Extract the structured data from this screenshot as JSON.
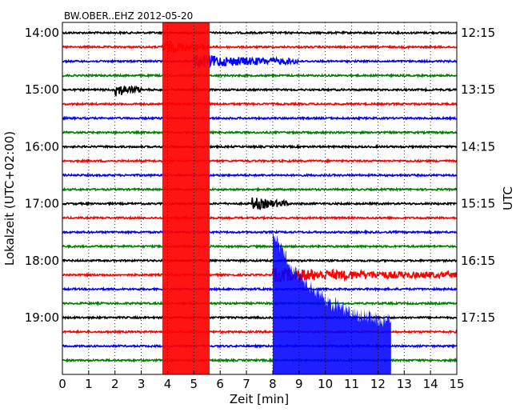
{
  "chart_data": {
    "type": "line",
    "title": "BW.OBER..EHZ 2012-05-20",
    "xlabel": "Zeit  [min]",
    "ylabel": "Lokalzeit (UTC+02:00)",
    "ylabel_right": "UTC",
    "xlim": [
      0,
      15
    ],
    "x_ticks": [
      "0",
      "1",
      "2",
      "3",
      "4",
      "5",
      "6",
      "7",
      "8",
      "9",
      "10",
      "11",
      "12",
      "13",
      "14",
      "15"
    ],
    "left_ticks": [
      "14:00",
      "15:00",
      "16:00",
      "17:00",
      "18:00",
      "19:00"
    ],
    "right_ticks": [
      "12:15",
      "13:15",
      "14:15",
      "15:15",
      "16:15",
      "17:15"
    ],
    "trace_colors": [
      "#000000",
      "#ff0000",
      "#0000ff",
      "#008000"
    ],
    "trace_count": 24,
    "grid": true,
    "events": [
      {
        "trace": 1,
        "start_min": 3.8,
        "end_min": 5.6,
        "color": "#ff0000",
        "note": "strong red band"
      },
      {
        "trace": 2,
        "start_min": 5.0,
        "end_min": 9.0,
        "color": "#ff0000"
      },
      {
        "trace": 17,
        "start_min": 8.0,
        "end_min": 15.0,
        "color": "#0000ff"
      },
      {
        "trace": 12,
        "start_min": 7.2,
        "end_min": 8.6,
        "color": "#008000"
      },
      {
        "trace": 4,
        "start_min": 2.0,
        "end_min": 3.0,
        "color": "#000000"
      }
    ]
  }
}
